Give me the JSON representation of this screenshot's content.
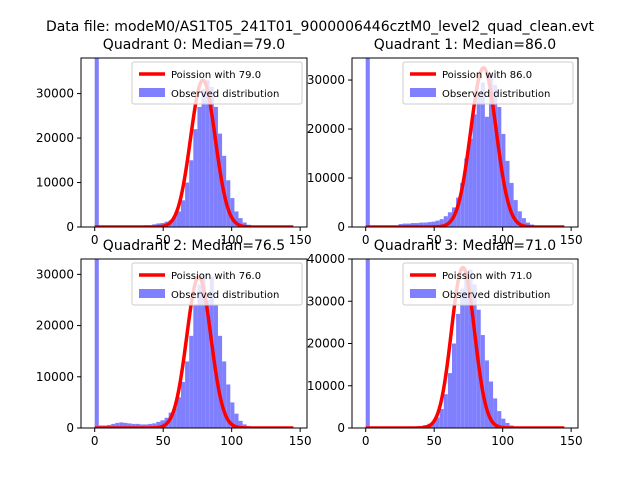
{
  "figure": {
    "suptitle": "Data file: modeM0/AS1T05_241T01_9000006446cztM0_level2_quad_clean.evt"
  },
  "chart_data": [
    {
      "type": "bar",
      "title": "Quadrant 0: Median=79.0",
      "xlim": [
        -10,
        155
      ],
      "ylim": [
        0,
        38000
      ],
      "xticks": [
        0,
        50,
        100,
        150
      ],
      "yticks": [
        0,
        10000,
        20000,
        30000
      ],
      "legend_position": "top-right",
      "series": [
        {
          "name": "Poission with 79.0",
          "kind": "line",
          "color": "#ff0000",
          "mean": 79.0,
          "peak": 33000,
          "sigma": 9.0
        },
        {
          "name": "Observed distribution",
          "kind": "hist",
          "color": "#8080ff",
          "bin_width": 3,
          "bins": [
            0,
            3,
            6,
            9,
            12,
            15,
            18,
            21,
            24,
            27,
            30,
            33,
            36,
            39,
            42,
            45,
            48,
            51,
            54,
            57,
            60,
            63,
            66,
            69,
            72,
            75,
            78,
            81,
            84,
            87,
            90,
            93,
            96,
            99,
            102,
            105,
            108,
            111,
            114,
            117,
            120,
            123,
            126,
            129,
            132,
            135,
            138,
            141,
            144
          ],
          "values": [
            38000,
            300,
            300,
            300,
            300,
            300,
            300,
            300,
            300,
            300,
            300,
            300,
            400,
            400,
            600,
            800,
            900,
            1200,
            1500,
            2500,
            3500,
            6000,
            10000,
            15000,
            22000,
            27000,
            31000,
            33000,
            31500,
            27000,
            21000,
            16000,
            10500,
            6500,
            3500,
            2000,
            1000,
            500,
            300,
            200,
            150,
            100,
            100,
            100,
            100,
            100,
            100,
            100,
            100
          ]
        }
      ]
    },
    {
      "type": "bar",
      "title": "Quadrant 1: Median=86.0",
      "xlim": [
        -10,
        155
      ],
      "ylim": [
        0,
        34500
      ],
      "xticks": [
        0,
        50,
        100,
        150
      ],
      "yticks": [
        0,
        10000,
        20000,
        30000
      ],
      "legend_position": "top-right",
      "series": [
        {
          "name": "Poission with 86.0",
          "kind": "line",
          "color": "#ff0000",
          "mean": 86.0,
          "peak": 32500,
          "sigma": 9.3
        },
        {
          "name": "Observed distribution",
          "kind": "hist",
          "color": "#8080ff",
          "bin_width": 3,
          "bins": [
            0,
            3,
            6,
            9,
            12,
            15,
            18,
            21,
            24,
            27,
            30,
            33,
            36,
            39,
            42,
            45,
            48,
            51,
            54,
            57,
            60,
            63,
            66,
            69,
            72,
            75,
            78,
            81,
            84,
            87,
            90,
            93,
            96,
            99,
            102,
            105,
            108,
            111,
            114,
            117,
            120,
            123,
            126,
            129,
            132,
            135,
            138,
            141,
            144
          ],
          "values": [
            34500,
            200,
            200,
            200,
            200,
            300,
            300,
            300,
            600,
            700,
            700,
            800,
            800,
            900,
            900,
            1000,
            1100,
            1300,
            1600,
            2200,
            3000,
            4000,
            6000,
            9000,
            14000,
            18000,
            23000,
            27000,
            29500,
            22500,
            31500,
            29000,
            24500,
            19000,
            13500,
            9000,
            5500,
            3200,
            1800,
            900,
            500,
            300,
            200,
            150,
            100,
            100,
            100,
            100,
            100
          ]
        }
      ]
    },
    {
      "type": "bar",
      "title": "Quadrant 2: Median=76.5",
      "xlim": [
        -10,
        155
      ],
      "ylim": [
        0,
        33000
      ],
      "xticks": [
        0,
        50,
        100,
        150
      ],
      "yticks": [
        0,
        10000,
        20000,
        30000
      ],
      "legend_position": "top-right",
      "series": [
        {
          "name": "Poission with 76.0",
          "kind": "line",
          "color": "#ff0000",
          "mean": 76.0,
          "peak": 29500,
          "sigma": 8.8
        },
        {
          "name": "Observed distribution",
          "kind": "hist",
          "color": "#8080ff",
          "bin_width": 3,
          "bins": [
            0,
            3,
            6,
            9,
            12,
            15,
            18,
            21,
            24,
            27,
            30,
            33,
            36,
            39,
            42,
            45,
            48,
            51,
            54,
            57,
            60,
            63,
            66,
            69,
            72,
            75,
            78,
            81,
            84,
            87,
            90,
            93,
            96,
            99,
            102,
            105,
            108,
            111,
            114,
            117,
            120,
            123,
            126,
            129,
            132,
            135,
            138,
            141,
            144
          ],
          "values": [
            33000,
            500,
            500,
            600,
            800,
            1000,
            1100,
            1000,
            900,
            800,
            800,
            700,
            700,
            800,
            900,
            1200,
            1500,
            2000,
            3000,
            4000,
            6000,
            9000,
            13000,
            18000,
            24000,
            28000,
            30000,
            25000,
            29500,
            24000,
            18000,
            13000,
            8500,
            5000,
            2800,
            1400,
            700,
            400,
            250,
            150,
            100,
            100,
            100,
            100,
            100,
            100,
            100,
            100,
            100
          ]
        }
      ]
    },
    {
      "type": "bar",
      "title": "Quadrant 3: Median=71.0",
      "xlim": [
        -10,
        155
      ],
      "ylim": [
        0,
        40000
      ],
      "xticks": [
        0,
        50,
        100,
        150
      ],
      "yticks": [
        0,
        10000,
        20000,
        30000,
        40000
      ],
      "legend_position": "top-right",
      "series": [
        {
          "name": "Poission with 71.0",
          "kind": "line",
          "color": "#ff0000",
          "mean": 71.0,
          "peak": 38000,
          "sigma": 8.4
        },
        {
          "name": "Observed distribution",
          "kind": "hist",
          "color": "#8080ff",
          "bin_width": 3,
          "bins": [
            0,
            3,
            6,
            9,
            12,
            15,
            18,
            21,
            24,
            27,
            30,
            33,
            36,
            39,
            42,
            45,
            48,
            51,
            54,
            57,
            60,
            63,
            66,
            69,
            72,
            75,
            78,
            81,
            84,
            87,
            90,
            93,
            96,
            99,
            102,
            105,
            108,
            111,
            114,
            117,
            120,
            123,
            126,
            129,
            132,
            135,
            138,
            141,
            144
          ],
          "values": [
            40000,
            300,
            300,
            300,
            300,
            300,
            300,
            300,
            300,
            300,
            300,
            300,
            400,
            500,
            700,
            1000,
            1500,
            2500,
            4500,
            8000,
            13000,
            20000,
            27000,
            33000,
            37000,
            37500,
            34000,
            28000,
            22000,
            16000,
            11000,
            7000,
            4000,
            2200,
            1200,
            600,
            300,
            200,
            150,
            100,
            100,
            100,
            100,
            100,
            100,
            100,
            100,
            100,
            100
          ]
        }
      ]
    }
  ]
}
